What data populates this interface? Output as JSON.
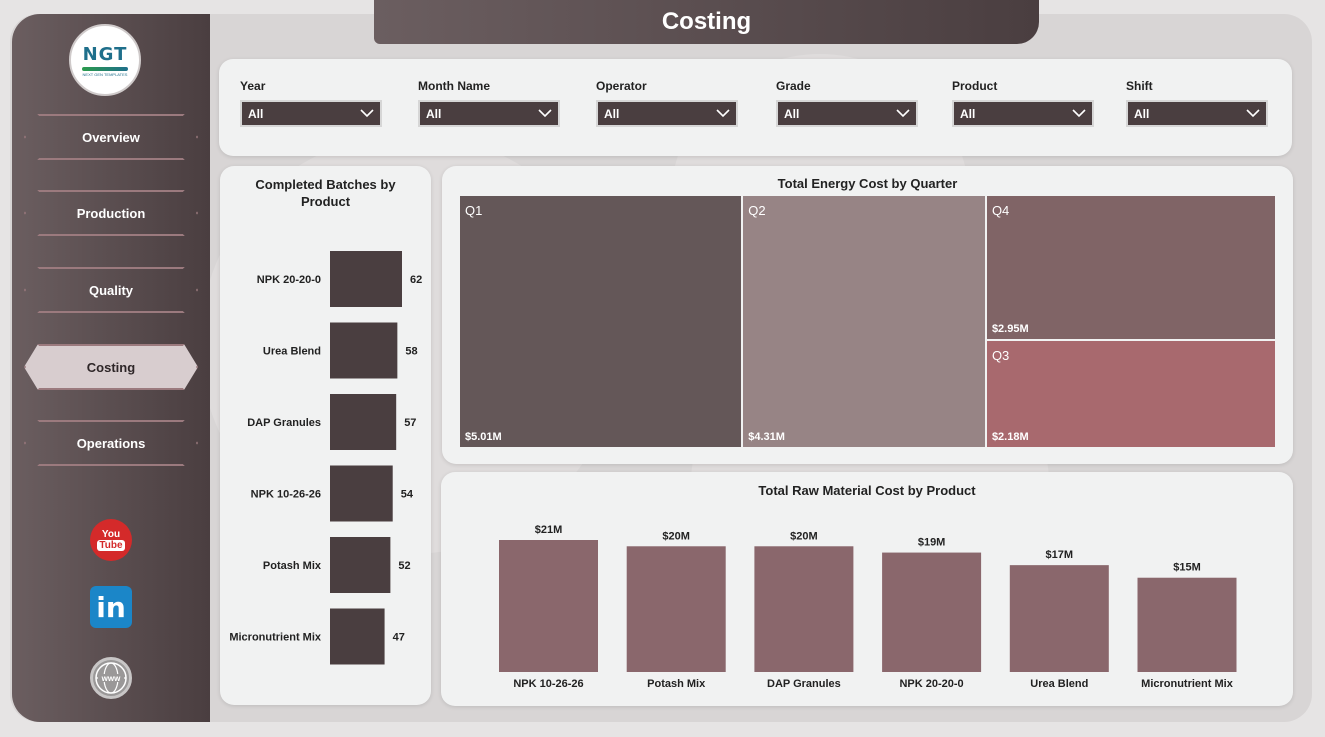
{
  "header": {
    "title": "Costing"
  },
  "logo": {
    "text": "NGT",
    "subtitle": "NEXT GEN TEMPLATES"
  },
  "nav": [
    {
      "id": "overview",
      "label": "Overview",
      "active": false
    },
    {
      "id": "production",
      "label": "Production",
      "active": false
    },
    {
      "id": "quality",
      "label": "Quality",
      "active": false
    },
    {
      "id": "costing",
      "label": "Costing",
      "active": true
    },
    {
      "id": "operations",
      "label": "Operations",
      "active": false
    }
  ],
  "social": {
    "youtube_top": "You",
    "youtube_bottom": "Tube",
    "linkedin": "in",
    "web": "www"
  },
  "filters": [
    {
      "label": "Year",
      "value": "All"
    },
    {
      "label": "Month Name",
      "value": "All"
    },
    {
      "label": "Operator",
      "value": "All"
    },
    {
      "label": "Grade",
      "value": "All"
    },
    {
      "label": "Product",
      "value": "All"
    },
    {
      "label": "Shift",
      "value": "All"
    }
  ],
  "colors": {
    "sidebar": "#4a3e40",
    "batch_bar": "#4a3e40",
    "raw_bar": "#8a676c",
    "q1": "#645758",
    "q2": "#978485",
    "q3": "#a8696e",
    "q4": "#806466"
  },
  "chart_data": [
    {
      "type": "bar",
      "orientation": "horizontal",
      "title": "Completed Batches by Product",
      "categories": [
        "NPK 20-20-0",
        "Urea Blend",
        "DAP Granules",
        "NPK 10-26-26",
        "Potash Mix",
        "Micronutrient Mix"
      ],
      "values": [
        62,
        58,
        57,
        54,
        52,
        47
      ],
      "xlim": [
        0,
        62
      ]
    },
    {
      "type": "treemap",
      "title": "Total Energy Cost by Quarter",
      "categories": [
        "Q1",
        "Q2",
        "Q4",
        "Q3"
      ],
      "values": [
        5.01,
        4.31,
        2.95,
        2.18
      ],
      "labels": [
        "$5.01M",
        "$4.31M",
        "$2.95M",
        "$2.18M"
      ],
      "unit": "$M"
    },
    {
      "type": "bar",
      "title": "Total Raw Material Cost by Product",
      "categories": [
        "NPK 10-26-26",
        "Potash Mix",
        "DAP Granules",
        "NPK 20-20-0",
        "Urea Blend",
        "Micronutrient Mix"
      ],
      "values": [
        21,
        20,
        20,
        19,
        17,
        15
      ],
      "labels": [
        "$21M",
        "$20M",
        "$20M",
        "$19M",
        "$17M",
        "$15M"
      ],
      "ylim": [
        0,
        21
      ],
      "unit": "$M"
    }
  ]
}
